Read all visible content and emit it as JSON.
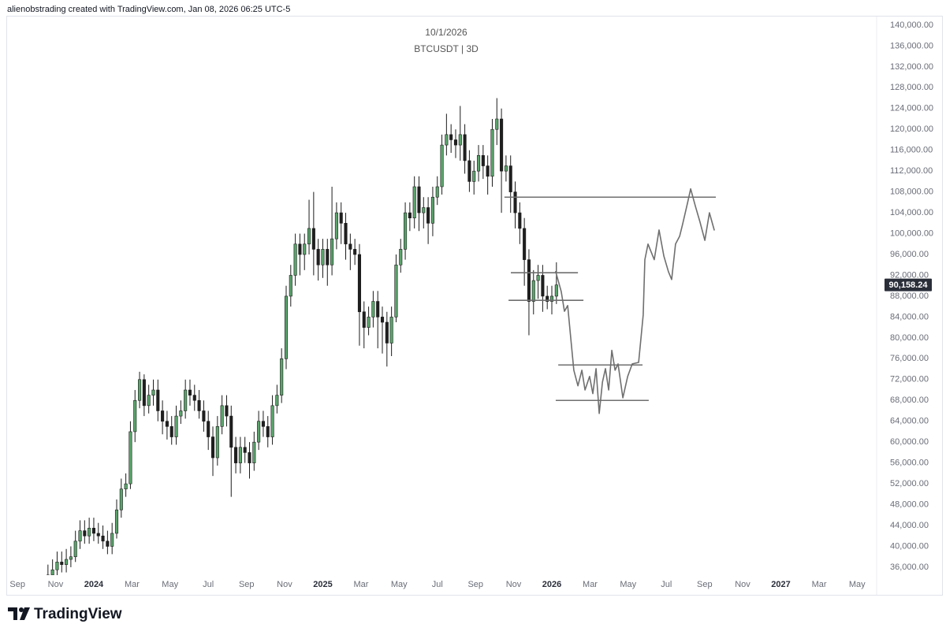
{
  "attribution": "alienobstrading created with TradingView.com, Jan 08, 2026 06:25 UTC-5",
  "brand": "TradingView",
  "chart_data": {
    "type": "candlestick",
    "title": "10/1/2026",
    "subtitle": "BTCUSDT | 3D",
    "up_color": "#5aa46b",
    "down_color": "#1f1f1f",
    "border_color": "#1c1c1c",
    "drawing_color": "#6f6f6f",
    "grid": false,
    "xlim": [
      2023.625,
      2027.394
    ],
    "xticks": [
      {
        "value": 2023.667,
        "label": "Sep"
      },
      {
        "value": 2023.833,
        "label": "Nov"
      },
      2024,
      {
        "value": 2024.167,
        "label": "Mar"
      },
      {
        "value": 2024.333,
        "label": "May"
      },
      {
        "value": 2024.5,
        "label": "Jul"
      },
      {
        "value": 2024.667,
        "label": "Sep"
      },
      {
        "value": 2024.833,
        "label": "Nov"
      },
      2025,
      {
        "value": 2025.167,
        "label": "Mar"
      },
      {
        "value": 2025.333,
        "label": "May"
      },
      {
        "value": 2025.5,
        "label": "Jul"
      },
      {
        "value": 2025.667,
        "label": "Sep"
      },
      {
        "value": 2025.833,
        "label": "Nov"
      },
      2026,
      {
        "value": 2026.167,
        "label": "Mar"
      },
      {
        "value": 2026.333,
        "label": "May"
      },
      {
        "value": 2026.5,
        "label": "Jul"
      },
      {
        "value": 2026.667,
        "label": "Sep"
      },
      {
        "value": 2026.833,
        "label": "Nov"
      },
      2027,
      {
        "value": 2027.167,
        "label": "Mar"
      },
      {
        "value": 2027.333,
        "label": "May"
      }
    ],
    "ylim": [
      34480,
      141500
    ],
    "yticks": [
      {
        "value": 36000,
        "label": "36,000.00"
      },
      {
        "value": 40000,
        "label": "40,000.00"
      },
      {
        "value": 44000,
        "label": "44,000.00"
      },
      {
        "value": 48000,
        "label": "48,000.00"
      },
      {
        "value": 52000,
        "label": "52,000.00"
      },
      {
        "value": 56000,
        "label": "56,000.00"
      },
      {
        "value": 60000,
        "label": "60,000.00"
      },
      {
        "value": 64000,
        "label": "64,000.00"
      },
      {
        "value": 68000,
        "label": "68,000.00"
      },
      {
        "value": 72000,
        "label": "72,000.00"
      },
      {
        "value": 76000,
        "label": "76,000.00"
      },
      {
        "value": 80000,
        "label": "80,000.00"
      },
      {
        "value": 84000,
        "label": "84,000.00"
      },
      {
        "value": 88000,
        "label": "88,000.00"
      },
      {
        "value": 92000,
        "label": "92,000.00"
      },
      {
        "value": 96000,
        "label": "96,000.00"
      },
      {
        "value": 100000,
        "label": "100,000.00"
      },
      {
        "value": 104000,
        "label": "104,000.00"
      },
      {
        "value": 108000,
        "label": "108,000.00"
      },
      {
        "value": 112000,
        "label": "112,000.00"
      },
      {
        "value": 116000,
        "label": "116,000.00"
      },
      {
        "value": 120000,
        "label": "120,000.00"
      },
      {
        "value": 124000,
        "label": "124,000.00"
      },
      {
        "value": 128000,
        "label": "128,000.00"
      },
      {
        "value": 132000,
        "label": "132,000.00"
      },
      {
        "value": 136000,
        "label": "136,000.00"
      },
      {
        "value": 140000,
        "label": "140,000.00"
      }
    ],
    "x": [
      2023.8,
      2023.82,
      2023.84,
      2023.86,
      2023.88,
      2023.9,
      2023.92,
      2023.94,
      2023.96,
      2023.98,
      2024,
      2024.02,
      2024.04,
      2024.06,
      2024.08,
      2024.1,
      2024.12,
      2024.14,
      2024.16,
      2024.18,
      2024.2,
      2024.22,
      2024.24,
      2024.26,
      2024.28,
      2024.3,
      2024.32,
      2024.34,
      2024.36,
      2024.38,
      2024.4,
      2024.42,
      2024.44,
      2024.46,
      2024.48,
      2024.5,
      2024.52,
      2024.54,
      2024.56,
      2024.58,
      2024.6,
      2024.62,
      2024.64,
      2024.66,
      2024.68,
      2024.7,
      2024.72,
      2024.74,
      2024.76,
      2024.78,
      2024.8,
      2024.82,
      2024.84,
      2024.86,
      2024.88,
      2024.9,
      2024.92,
      2024.94,
      2024.96,
      2024.98,
      2025,
      2025.02,
      2025.04,
      2025.06,
      2025.08,
      2025.1,
      2025.12,
      2025.14,
      2025.16,
      2025.18,
      2025.2,
      2025.22,
      2025.24,
      2025.26,
      2025.28,
      2025.3,
      2025.32,
      2025.34,
      2025.36,
      2025.38,
      2025.4,
      2025.42,
      2025.44,
      2025.46,
      2025.48,
      2025.5,
      2025.52,
      2025.54,
      2025.56,
      2025.58,
      2025.6,
      2025.62,
      2025.64,
      2025.66,
      2025.68,
      2025.7,
      2025.72,
      2025.74,
      2025.76,
      2025.78,
      2025.8,
      2025.82,
      2025.84,
      2025.86,
      2025.88,
      2025.9,
      2025.92,
      2025.94,
      2025.96,
      2025.98,
      2026,
      2026.02
    ],
    "open": [
      34000,
      34500,
      35500,
      37000,
      36500,
      37500,
      38000,
      41000,
      43000,
      42000,
      43500,
      42500,
      42000,
      41000,
      40000,
      42500,
      47000,
      51000,
      52000,
      62000,
      68000,
      72000,
      67000,
      69000,
      70000,
      66000,
      64000,
      63000,
      61000,
      65000,
      66000,
      70000,
      69000,
      68000,
      66000,
      64000,
      61000,
      57000,
      63000,
      67000,
      65000,
      59000,
      56000,
      59000,
      58000,
      56000,
      60000,
      64000,
      63000,
      61000,
      67000,
      69000,
      76000,
      88000,
      92000,
      98000,
      96000,
      98000,
      101000,
      97000,
      94000,
      97000,
      94000,
      99000,
      104000,
      102000,
      98000,
      97000,
      96000,
      85000,
      82000,
      84000,
      87000,
      84000,
      83000,
      79000,
      84000,
      94000,
      97000,
      104000,
      103000,
      109000,
      104000,
      105000,
      102000,
      107000,
      109000,
      117000,
      119000,
      118000,
      117000,
      119000,
      114000,
      110000,
      112000,
      115000,
      113000,
      111000,
      120000,
      122000,
      112000,
      113000,
      108000,
      104000,
      101000,
      95000,
      87000,
      91000,
      92000,
      88000,
      87000,
      88000
    ],
    "high": [
      36500,
      37500,
      39000,
      39000,
      39500,
      40000,
      43000,
      45000,
      45000,
      45500,
      45500,
      44500,
      44000,
      43000,
      44500,
      49000,
      53000,
      54000,
      64000,
      70000,
      73500,
      73000,
      71000,
      72000,
      72000,
      68000,
      66000,
      65000,
      67000,
      68000,
      72000,
      72000,
      71000,
      70000,
      68000,
      66000,
      63000,
      65000,
      69000,
      69000,
      67000,
      61000,
      61000,
      61000,
      60000,
      62000,
      66000,
      66000,
      65000,
      69000,
      71000,
      78000,
      90000,
      94000,
      100000,
      100000,
      100000,
      106500,
      108000,
      99000,
      99000,
      99000,
      109000,
      106000,
      106000,
      104000,
      100000,
      99000,
      98000,
      87000,
      86000,
      89000,
      89000,
      86000,
      85000,
      86000,
      96000,
      99000,
      106000,
      106000,
      111000,
      111000,
      107000,
      107000,
      109000,
      111000,
      119000,
      123000,
      121000,
      120000,
      124500,
      121000,
      116000,
      114000,
      117000,
      117000,
      115000,
      122000,
      126000,
      124000,
      115000,
      115000,
      110000,
      106000,
      103000,
      97000,
      93000,
      94000,
      94000,
      90000,
      90000,
      94500
    ],
    "low": [
      33000,
      33000,
      34000,
      35000,
      35000,
      36000,
      37000,
      39500,
      40500,
      40500,
      41000,
      40500,
      39500,
      38500,
      38500,
      41500,
      45500,
      49500,
      51000,
      60000,
      66500,
      65000,
      65500,
      67000,
      64000,
      61500,
      60500,
      59500,
      59500,
      63500,
      64500,
      67000,
      66000,
      64500,
      62000,
      58500,
      53500,
      55500,
      61500,
      63000,
      49500,
      54000,
      54000,
      56000,
      53000,
      54500,
      58500,
      61000,
      59000,
      59500,
      65500,
      67500,
      74000,
      86000,
      90000,
      92000,
      93000,
      96000,
      92000,
      91000,
      91500,
      90000,
      92000,
      97000,
      98000,
      95000,
      93000,
      94000,
      78500,
      78000,
      80500,
      82000,
      78000,
      77000,
      74500,
      76500,
      83000,
      92500,
      95000,
      100500,
      101000,
      100500,
      101000,
      98000,
      99500,
      105500,
      107500,
      115000,
      115500,
      114500,
      114000,
      111500,
      108000,
      107500,
      110000,
      110500,
      107500,
      109000,
      117000,
      104000,
      110000,
      104000,
      101000,
      98000,
      90000,
      80500,
      84500,
      87500,
      85000,
      85500,
      84500,
      86500
    ],
    "close": [
      34500,
      35500,
      37000,
      36500,
      37500,
      38000,
      41000,
      43000,
      42000,
      43500,
      42500,
      42000,
      41000,
      40000,
      42500,
      47000,
      51000,
      52000,
      62000,
      68000,
      72000,
      67000,
      69000,
      70000,
      66000,
      64000,
      63000,
      61000,
      65000,
      66000,
      70000,
      69000,
      68000,
      66000,
      64000,
      61000,
      57000,
      63000,
      67000,
      65000,
      59000,
      56000,
      59000,
      58000,
      56000,
      60000,
      64000,
      63000,
      61000,
      67000,
      69000,
      76000,
      88000,
      92000,
      98000,
      96000,
      98000,
      101000,
      97000,
      94000,
      97000,
      94000,
      99000,
      104000,
      102000,
      98000,
      97000,
      96000,
      85000,
      82000,
      84000,
      87000,
      84000,
      83000,
      79000,
      84000,
      94000,
      97000,
      104000,
      103000,
      109000,
      104000,
      105000,
      102000,
      107000,
      109000,
      117000,
      119000,
      118000,
      117000,
      119000,
      114000,
      110000,
      112000,
      115000,
      113000,
      111000,
      120000,
      122000,
      112000,
      113000,
      108000,
      104000,
      101000,
      95000,
      87000,
      91000,
      92000,
      88000,
      87000,
      88000,
      90158.24
    ],
    "last_price": {
      "value": 90158.24,
      "label": "90,158.24"
    },
    "levels": [
      {
        "price": 107000,
        "x": [
          2025.793,
          2026.716
        ]
      },
      {
        "price": 92500,
        "x": [
          2025.821,
          2026.114
        ]
      },
      {
        "price": 87200,
        "x": [
          2025.811,
          2026.138
        ]
      },
      {
        "price": 74800,
        "x": [
          2026.028,
          2026.396
        ]
      },
      {
        "price": 68000,
        "x": [
          2026.017,
          2026.423
        ]
      }
    ],
    "forecast": {
      "x": [
        2026.017,
        2026.041,
        2026.055,
        2026.069,
        2026.083,
        2026.096,
        2026.114,
        2026.131,
        2026.145,
        2026.165,
        2026.179,
        2026.193,
        2026.207,
        2026.221,
        2026.234,
        2026.248,
        2026.262,
        2026.276,
        2026.289,
        2026.31,
        2026.331,
        2026.351,
        2026.379,
        2026.399,
        2026.406,
        2026.42,
        2026.447,
        2026.468,
        2026.489,
        2026.509,
        2026.523,
        2026.54,
        2026.558,
        2026.571,
        2026.592,
        2026.606,
        2026.627,
        2026.647,
        2026.668,
        2026.688,
        2026.709
      ],
      "y": [
        92700,
        88900,
        85100,
        86200,
        79800,
        73800,
        70800,
        73800,
        70000,
        72600,
        69300,
        74100,
        65500,
        71500,
        74100,
        70000,
        77600,
        73800,
        75000,
        68500,
        72600,
        75000,
        75300,
        84400,
        95000,
        98000,
        95000,
        100700,
        95700,
        92700,
        91200,
        98000,
        99500,
        101800,
        105800,
        108600,
        105200,
        102200,
        98700,
        104000,
        100700
      ]
    }
  }
}
